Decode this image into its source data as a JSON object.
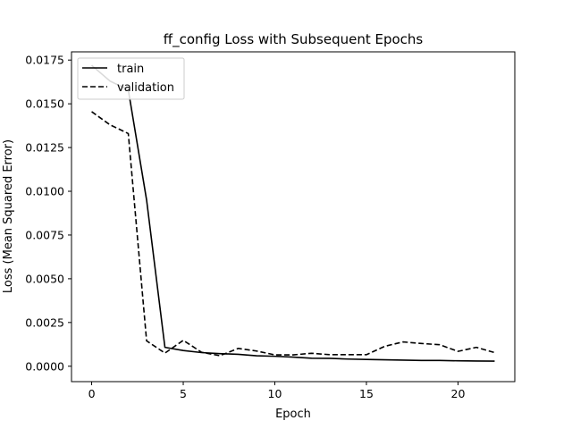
{
  "chart_data": {
    "type": "line",
    "title": "ff_config Loss with Subsequent Epochs",
    "xlabel": "Epoch",
    "ylabel": "Loss (Mean Squared Error)",
    "xlim": [
      -1.1,
      23.1
    ],
    "ylim": [
      -0.00088,
      0.01797
    ],
    "x_ticks": [
      0,
      5,
      10,
      15,
      20
    ],
    "x_tick_labels": [
      "0",
      "5",
      "10",
      "15",
      "20"
    ],
    "y_ticks": [
      0.0,
      0.0025,
      0.005,
      0.0075,
      0.01,
      0.0125,
      0.015,
      0.0175
    ],
    "y_tick_labels": [
      "0.0000",
      "0.0025",
      "0.0050",
      "0.0075",
      "0.0100",
      "0.0125",
      "0.0150",
      "0.0175"
    ],
    "grid": false,
    "legend_position": "upper-left",
    "x": [
      0,
      1,
      2,
      3,
      4,
      5,
      6,
      7,
      8,
      9,
      10,
      11,
      12,
      13,
      14,
      15,
      16,
      17,
      18,
      19,
      20,
      21,
      22
    ],
    "series": [
      {
        "name": "train",
        "style": "solid",
        "color": "#000000",
        "values": [
          0.0172,
          0.0163,
          0.0158,
          0.0095,
          0.00108,
          0.0009,
          0.00078,
          0.00072,
          0.00068,
          0.0006,
          0.00057,
          0.00052,
          0.00046,
          0.00045,
          0.00041,
          0.00039,
          0.00037,
          0.00035,
          0.00033,
          0.00033,
          0.00031,
          0.0003,
          0.00029
        ]
      },
      {
        "name": "validation",
        "style": "dashed",
        "color": "#000000",
        "values": [
          0.01455,
          0.0138,
          0.0133,
          0.00145,
          0.00075,
          0.00148,
          0.0008,
          0.0006,
          0.00102,
          0.00087,
          0.00065,
          0.00065,
          0.00074,
          0.00066,
          0.00066,
          0.00066,
          0.00114,
          0.00139,
          0.0013,
          0.00123,
          0.00085,
          0.00108,
          0.00078
        ]
      }
    ]
  }
}
